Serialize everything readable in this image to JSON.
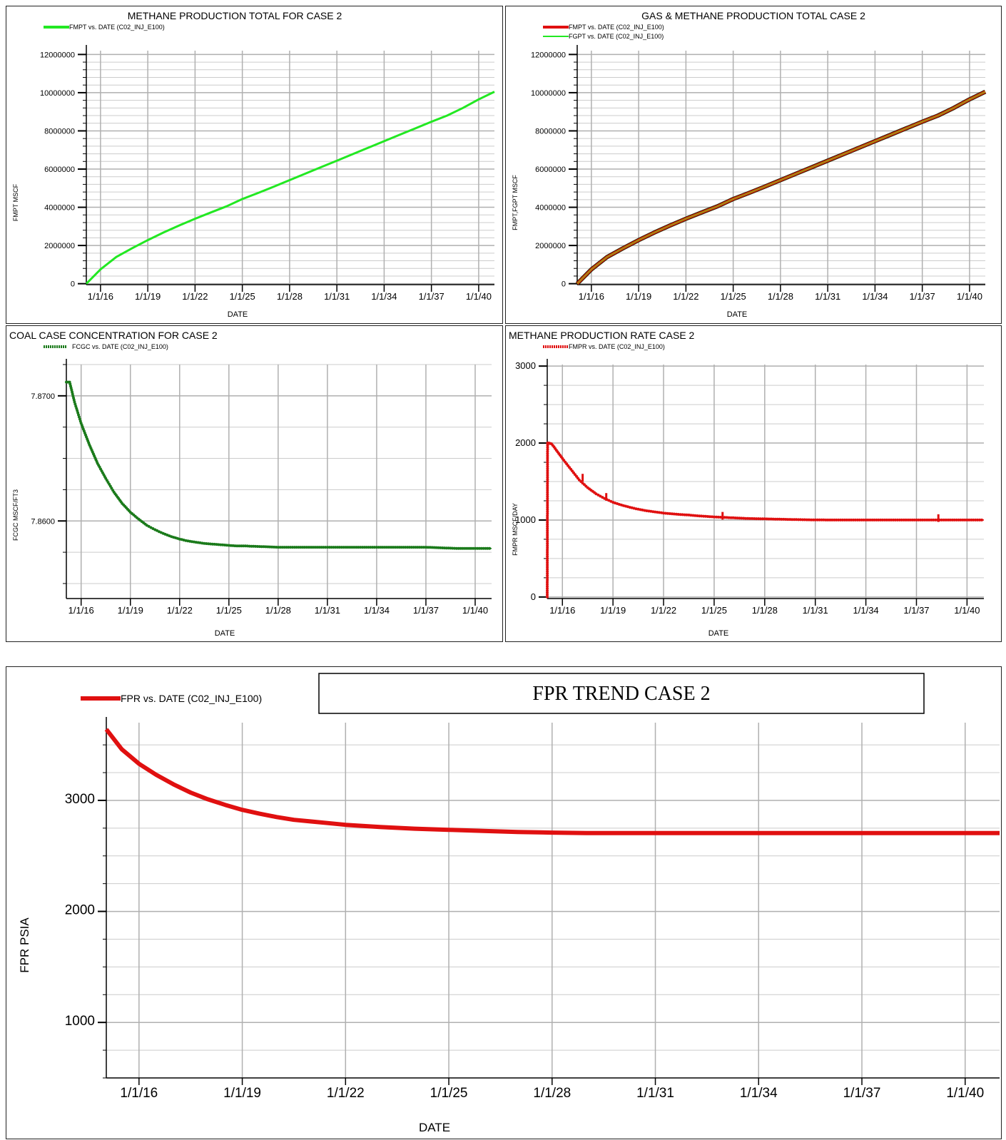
{
  "chart_data": [
    {
      "type": "line",
      "title": "METHANE PRODUCTION TOTAL FOR CASE 2",
      "xlabel": "DATE",
      "ylabel": "FMPT  MSCF",
      "x_tick_labels": [
        "1/1/16",
        "1/1/19",
        "1/1/22",
        "1/1/25",
        "1/1/28",
        "1/1/31",
        "1/1/34",
        "1/1/37",
        "1/1/40"
      ],
      "x_tick_years": [
        2016,
        2019,
        2022,
        2025,
        2028,
        2031,
        2034,
        2037,
        2040
      ],
      "y_tick_labels": [
        "0",
        "2000000",
        "4000000",
        "6000000",
        "8000000",
        "10000000",
        "12000000"
      ],
      "y_tick_values": [
        0,
        2000000,
        4000000,
        6000000,
        8000000,
        10000000,
        12000000
      ],
      "xlim": [
        2015.1,
        2041.0
      ],
      "ylim": [
        -50000,
        12200000
      ],
      "grid": true,
      "legend_position": "top-left",
      "series": [
        {
          "name": "FMPT vs. DATE (C02_INJ_E100)",
          "color": "#22e822",
          "x": [
            2015.1,
            2016,
            2017,
            2018,
            2019,
            2020,
            2021,
            2022,
            2023,
            2024,
            2025,
            2026,
            2027,
            2028,
            2029,
            2030,
            2031,
            2032,
            2033,
            2034,
            2035,
            2036,
            2037,
            2038,
            2039,
            2040,
            2041
          ],
          "y": [
            0,
            750000,
            1400000,
            1850000,
            2280000,
            2680000,
            3050000,
            3400000,
            3730000,
            4050000,
            4430000,
            4750000,
            5080000,
            5420000,
            5760000,
            6100000,
            6440000,
            6780000,
            7120000,
            7460000,
            7800000,
            8140000,
            8480000,
            8800000,
            9200000,
            9650000,
            10050000
          ]
        }
      ]
    },
    {
      "type": "line",
      "title": "GAS & METHANE PRODUCTION TOTAL CASE 2",
      "xlabel": "DATE",
      "ylabel": "FMPT,FGPT  MSCF",
      "x_tick_labels": [
        "1/1/16",
        "1/1/19",
        "1/1/22",
        "1/1/25",
        "1/1/28",
        "1/1/31",
        "1/1/34",
        "1/1/37",
        "1/1/40"
      ],
      "x_tick_years": [
        2016,
        2019,
        2022,
        2025,
        2028,
        2031,
        2034,
        2037,
        2040
      ],
      "y_tick_labels": [
        "0",
        "2000000",
        "4000000",
        "6000000",
        "8000000",
        "10000000",
        "12000000"
      ],
      "y_tick_values": [
        0,
        2000000,
        4000000,
        6000000,
        8000000,
        10000000,
        12000000
      ],
      "xlim": [
        2015.1,
        2041.0
      ],
      "ylim": [
        -50000,
        12200000
      ],
      "grid": true,
      "legend_position": "top-left",
      "series": [
        {
          "name": "FMPT vs. DATE (C02_INJ_E100)",
          "color": "#e01010",
          "x": [
            2015.1,
            2016,
            2017,
            2018,
            2019,
            2020,
            2021,
            2022,
            2023,
            2024,
            2025,
            2026,
            2027,
            2028,
            2029,
            2030,
            2031,
            2032,
            2033,
            2034,
            2035,
            2036,
            2037,
            2038,
            2039,
            2040,
            2041
          ],
          "y": [
            0,
            750000,
            1400000,
            1850000,
            2280000,
            2680000,
            3050000,
            3400000,
            3730000,
            4050000,
            4430000,
            4750000,
            5080000,
            5420000,
            5760000,
            6100000,
            6440000,
            6780000,
            7120000,
            7460000,
            7800000,
            8140000,
            8480000,
            8800000,
            9200000,
            9650000,
            10050000
          ]
        },
        {
          "name": "FGPT vs. DATE (C02_INJ_E100)",
          "color": "#22e822",
          "x": [
            2015.1,
            2016,
            2017,
            2018,
            2019,
            2020,
            2021,
            2022,
            2023,
            2024,
            2025,
            2026,
            2027,
            2028,
            2029,
            2030,
            2031,
            2032,
            2033,
            2034,
            2035,
            2036,
            2037,
            2038,
            2039,
            2040,
            2041
          ],
          "y": [
            0,
            750000,
            1400000,
            1850000,
            2280000,
            2680000,
            3050000,
            3400000,
            3730000,
            4050000,
            4430000,
            4750000,
            5080000,
            5420000,
            5760000,
            6100000,
            6440000,
            6780000,
            7120000,
            7460000,
            7800000,
            8140000,
            8480000,
            8800000,
            9200000,
            9650000,
            10050000
          ]
        }
      ]
    },
    {
      "type": "line",
      "title": "COAL CASE CONCENTRATION FOR CASE 2",
      "xlabel": "DATE",
      "ylabel": "FCGC  MSCF/FT3",
      "x_tick_labels": [
        "1/1/16",
        "1/1/19",
        "1/1/22",
        "1/1/25",
        "1/1/28",
        "1/1/31",
        "1/1/34",
        "1/1/37",
        "1/1/40"
      ],
      "x_tick_years": [
        2016,
        2019,
        2022,
        2025,
        2028,
        2031,
        2034,
        2037,
        2040
      ],
      "y_tick_labels": [
        "7.8600",
        "7.8700"
      ],
      "y_tick_values": [
        7.86,
        7.87
      ],
      "xlim": [
        2015.1,
        2041.0
      ],
      "ylim": [
        7.8538,
        7.8725
      ],
      "grid": true,
      "legend_position": "top-left",
      "series": [
        {
          "name": "FCGC vs. DATE (C02_INJ_E100)",
          "color": "#1a7a1a",
          "x": [
            2015.1,
            2015.3,
            2015.6,
            2016,
            2016.5,
            2017,
            2017.5,
            2018,
            2018.5,
            2019,
            2019.5,
            2020,
            2020.5,
            2021,
            2021.5,
            2022,
            2022.5,
            2023,
            2023.5,
            2024,
            2024.5,
            2025,
            2025.5,
            2026,
            2027,
            2028,
            2029,
            2030,
            2031,
            2032,
            2033,
            2034,
            2035,
            2036,
            2037,
            2038,
            2039,
            2040,
            2041
          ],
          "y": [
            7.8711,
            7.8711,
            7.8695,
            7.8678,
            7.8661,
            7.8646,
            7.8634,
            7.8623,
            7.8614,
            7.8607,
            7.86015,
            7.85965,
            7.8593,
            7.859,
            7.85875,
            7.85855,
            7.8584,
            7.8583,
            7.8582,
            7.85815,
            7.8581,
            7.85805,
            7.858,
            7.858,
            7.85795,
            7.8579,
            7.8579,
            7.8579,
            7.8579,
            7.8579,
            7.8579,
            7.8579,
            7.8579,
            7.8579,
            7.8579,
            7.85785,
            7.8578,
            7.8578,
            7.8578
          ]
        }
      ]
    },
    {
      "type": "line",
      "title": "METHANE PRODUCTION RATE CASE 2",
      "xlabel": "DATE",
      "ylabel": "FMPR  MSCF/DAY",
      "x_tick_labels": [
        "1/1/16",
        "1/1/19",
        "1/1/22",
        "1/1/25",
        "1/1/28",
        "1/1/31",
        "1/1/34",
        "1/1/37",
        "1/1/40"
      ],
      "x_tick_years": [
        2016,
        2019,
        2022,
        2025,
        2028,
        2031,
        2034,
        2037,
        2040
      ],
      "y_tick_labels": [
        "0",
        "1000",
        "2000",
        "3000"
      ],
      "y_tick_values": [
        0,
        1000,
        2000,
        3000
      ],
      "xlim": [
        2015.1,
        2041.0
      ],
      "ylim": [
        -20,
        3020
      ],
      "grid": true,
      "legend_position": "top-left",
      "series": [
        {
          "name": "FMPR vs. DATE (C02_INJ_E100)",
          "color": "#e01010",
          "x": [
            2015.1,
            2015.12,
            2015.2,
            2015.35,
            2015.5,
            2016,
            2016.5,
            2017,
            2017.5,
            2018,
            2018.5,
            2019,
            2019.5,
            2020,
            2020.5,
            2021,
            2021.5,
            2022,
            2022.5,
            2023,
            2023.5,
            2024,
            2025,
            2026,
            2027,
            2028,
            2029,
            2030,
            2031,
            2032,
            2033,
            2034,
            2035,
            2036,
            2037,
            2038,
            2039,
            2040,
            2041
          ],
          "y": [
            0,
            2000,
            2000,
            1990,
            1950,
            1800,
            1660,
            1520,
            1420,
            1340,
            1280,
            1230,
            1195,
            1165,
            1140,
            1120,
            1105,
            1090,
            1080,
            1072,
            1065,
            1055,
            1040,
            1030,
            1020,
            1015,
            1010,
            1005,
            1002,
            1000,
            1000,
            1000,
            1000,
            1000,
            1000,
            1000,
            1000,
            1000,
            1000
          ]
        }
      ]
    },
    {
      "type": "line",
      "title": "FPR TREND CASE 2",
      "xlabel": "DATE",
      "ylabel": "FPR  PSIA",
      "x_tick_labels": [
        "1/1/16",
        "1/1/19",
        "1/1/22",
        "1/1/25",
        "1/1/28",
        "1/1/31",
        "1/1/34",
        "1/1/37",
        "1/1/40"
      ],
      "x_tick_years": [
        2016,
        2019,
        2022,
        2025,
        2028,
        2031,
        2034,
        2037,
        2040
      ],
      "y_tick_labels": [
        "1000",
        "2000",
        "3000"
      ],
      "y_tick_values": [
        1000,
        2000,
        3000
      ],
      "xlim": [
        2015.05,
        2041.0
      ],
      "ylim": [
        500,
        3700
      ],
      "grid": true,
      "legend_position": "top-left",
      "series": [
        {
          "name": "FPR vs. DATE (C02_INJ_E100)",
          "color": "#e01010",
          "x": [
            2015.05,
            2015.5,
            2016,
            2016.5,
            2017,
            2017.5,
            2018,
            2018.5,
            2019,
            2019.5,
            2020,
            2020.5,
            2021,
            2021.5,
            2022,
            2022.5,
            2023,
            2024,
            2025,
            2026,
            2027,
            2028,
            2029,
            2030,
            2031,
            2032,
            2033,
            2034,
            2035,
            2036,
            2037,
            2038,
            2039,
            2040,
            2041
          ],
          "y": [
            3640,
            3460,
            3330,
            3230,
            3145,
            3070,
            3010,
            2960,
            2915,
            2880,
            2850,
            2825,
            2810,
            2795,
            2780,
            2770,
            2760,
            2745,
            2735,
            2725,
            2715,
            2710,
            2705,
            2705,
            2705,
            2705,
            2705,
            2705,
            2705,
            2705,
            2705,
            2705,
            2705,
            2705,
            2705
          ]
        }
      ]
    }
  ]
}
